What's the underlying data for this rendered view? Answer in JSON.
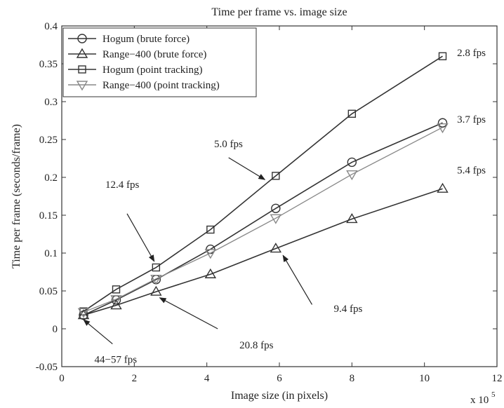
{
  "chart_data": {
    "type": "line",
    "title": "Time per frame vs. image size",
    "xlabel": "Image size (in pixels)",
    "ylabel": "Time per frame (seconds/frame)",
    "x_multiplier_label": "x 10",
    "x_multiplier_exponent": "5",
    "xlim": [
      0,
      12
    ],
    "ylim": [
      -0.05,
      0.4
    ],
    "x_ticks": [
      0,
      2,
      4,
      6,
      8,
      10,
      12
    ],
    "x_tick_labels": [
      "0",
      "2",
      "4",
      "6",
      "8",
      "10",
      "12"
    ],
    "y_ticks": [
      -0.05,
      0,
      0.05,
      0.1,
      0.15,
      0.2,
      0.25,
      0.3,
      0.35,
      0.4
    ],
    "y_tick_labels": [
      "-0.05",
      "0",
      "0.05",
      "0.1",
      "0.15",
      "0.2",
      "0.25",
      "0.3",
      "0.35",
      "0.4"
    ],
    "grid": false,
    "legend_position": "top-left",
    "x": [
      0.6,
      1.5,
      2.6,
      4.1,
      5.9,
      8.0,
      10.5
    ],
    "series": [
      {
        "name": "Hogum (brute force)",
        "marker": "circle",
        "color": "#333333",
        "values": [
          0.018,
          0.038,
          0.065,
          0.105,
          0.159,
          0.22,
          0.272
        ]
      },
      {
        "name": "Range−400 (brute force)",
        "marker": "triangle-up",
        "color": "#333333",
        "values": [
          0.018,
          0.031,
          0.049,
          0.072,
          0.106,
          0.145,
          0.185
        ]
      },
      {
        "name": "Hogum (point tracking)",
        "marker": "square",
        "color": "#333333",
        "values": [
          0.023,
          0.052,
          0.081,
          0.131,
          0.202,
          0.284,
          0.36
        ]
      },
      {
        "name": "Range−400 (point tracking)",
        "marker": "triangle-down",
        "color": "#888888",
        "values": [
          0.022,
          0.039,
          0.066,
          0.1,
          0.146,
          0.204,
          0.266
        ]
      }
    ],
    "annotations": [
      {
        "text": "2.8 fps",
        "x": 10.9,
        "y": 0.36,
        "arrow": false
      },
      {
        "text": "3.7 fps",
        "x": 10.9,
        "y": 0.272,
        "arrow": false
      },
      {
        "text": "5.4 fps",
        "x": 10.9,
        "y": 0.205,
        "arrow": false
      },
      {
        "text": "5.0 fps",
        "x": 4.2,
        "y": 0.24,
        "arrow": true,
        "arrow_to": [
          5.6,
          0.197
        ],
        "arrow_from": [
          4.6,
          0.226
        ]
      },
      {
        "text": "12.4 fps",
        "x": 1.2,
        "y": 0.186,
        "arrow": true,
        "arrow_to": [
          2.55,
          0.089
        ],
        "arrow_from": [
          1.8,
          0.152
        ]
      },
      {
        "text": "9.4 fps",
        "x": 7.5,
        "y": 0.022,
        "arrow": true,
        "arrow_to": [
          6.1,
          0.097
        ],
        "arrow_from": [
          6.9,
          0.032
        ]
      },
      {
        "text": "20.8 fps",
        "x": 4.9,
        "y": -0.026,
        "arrow": true,
        "arrow_to": [
          2.7,
          0.041
        ],
        "arrow_from": [
          4.3,
          -0.0
        ]
      },
      {
        "text": "44−57 fps",
        "x": 0.9,
        "y": -0.045,
        "arrow": true,
        "arrow_to": [
          0.6,
          0.012
        ],
        "arrow_from": [
          1.4,
          -0.02
        ]
      }
    ]
  }
}
